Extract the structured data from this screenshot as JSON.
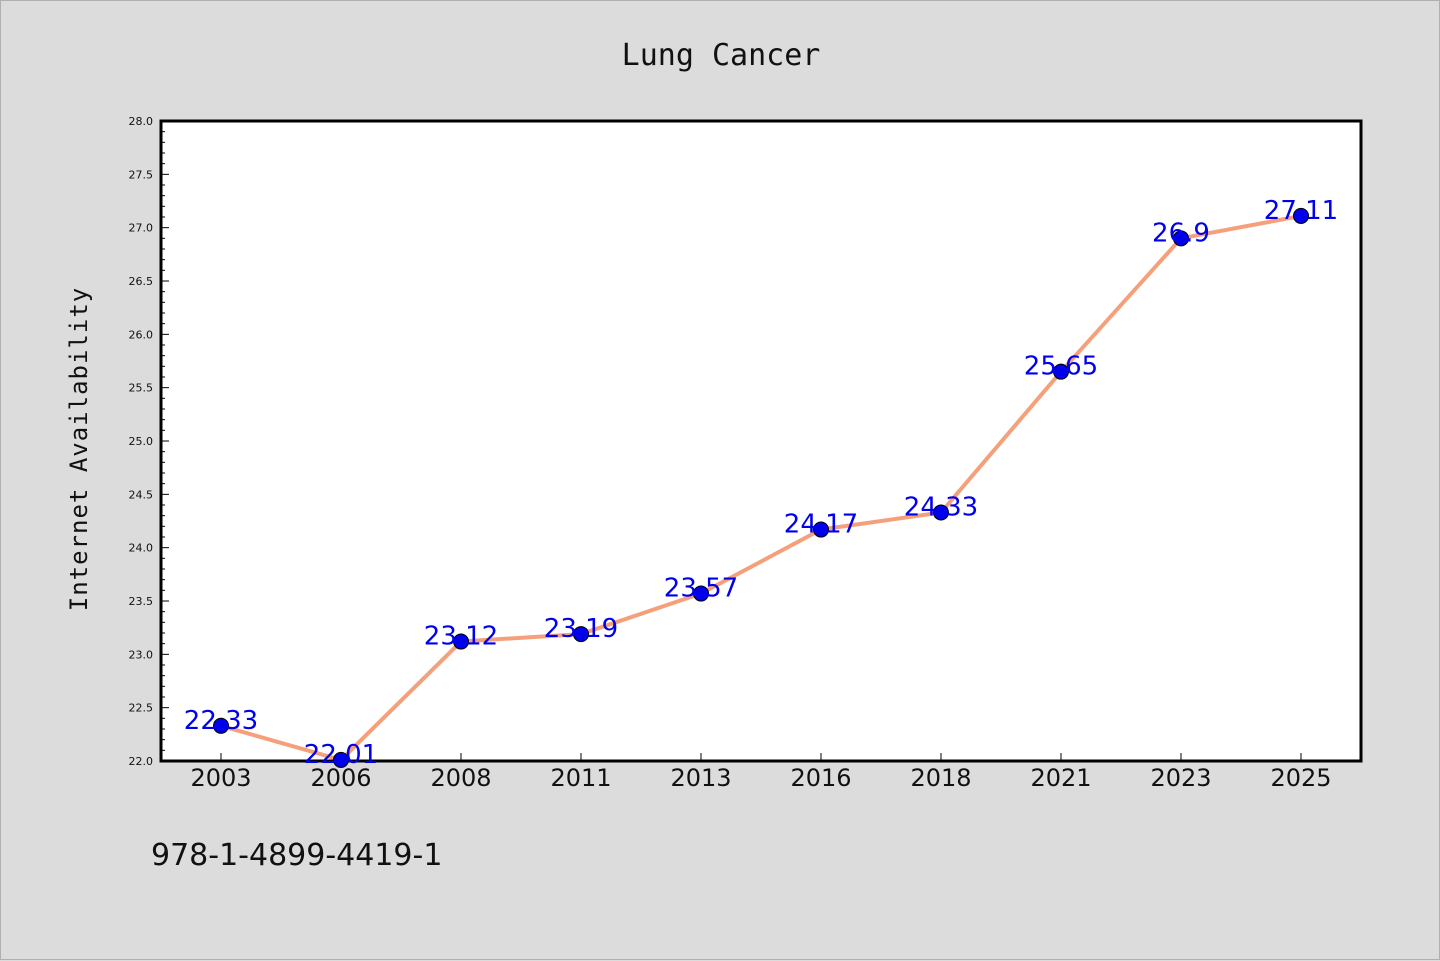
{
  "footer": {
    "isbn": "978-1-4899-4419-1"
  },
  "colors": {
    "background": "#dcdcdc",
    "plot": "#ffffff",
    "line": "#f5a07a",
    "marker": "#0000ee",
    "label": "#0000ee"
  },
  "chart_data": {
    "type": "line",
    "title": "Lung Cancer",
    "xlabel": "",
    "ylabel": "Internet Availability",
    "categories": [
      "2003",
      "2006",
      "2008",
      "2011",
      "2013",
      "2016",
      "2018",
      "2021",
      "2023",
      "2025"
    ],
    "series": [
      {
        "values": [
          22.33,
          22.01,
          23.12,
          23.19,
          23.57,
          24.17,
          24.33,
          25.65,
          26.9,
          27.11
        ]
      }
    ],
    "data_labels": [
      "22.33",
      "22.01",
      "23.12",
      "23.19",
      "23.57",
      "24.17",
      "24.33",
      "25.65",
      "26.9",
      "27.11"
    ],
    "yticks": [
      "22.0",
      "22.5",
      "23.0",
      "23.5",
      "24.0",
      "24.5",
      "25.0",
      "25.5",
      "26.0",
      "26.5",
      "27.0",
      "27.5",
      "28.0"
    ],
    "ylim": [
      22.0,
      28.0
    ],
    "grid": false,
    "legend": "none"
  }
}
